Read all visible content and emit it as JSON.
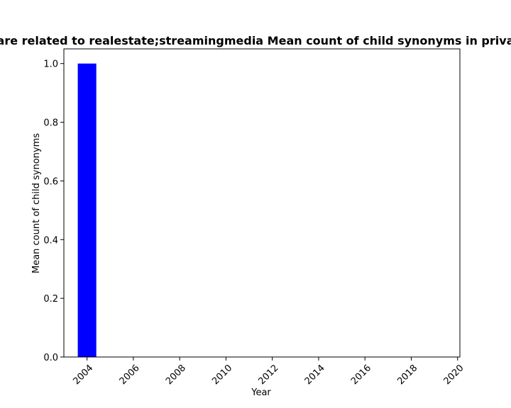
{
  "chart_data": {
    "type": "bar",
    "title": "are related to realestate;streamingmedia Mean count of child synonyms in priva",
    "xlabel": "Year",
    "ylabel": "Mean count of child synonyms",
    "x": [
      2004
    ],
    "values": [
      1.0
    ],
    "bar_color": "#0000ff",
    "xlim": [
      2003,
      2020.1
    ],
    "ylim": [
      0,
      1.05
    ],
    "xticks": [
      "2004",
      "2006",
      "2008",
      "2010",
      "2012",
      "2014",
      "2016",
      "2018",
      "2020"
    ],
    "yticks": [
      "0.0",
      "0.2",
      "0.4",
      "0.6",
      "0.8",
      "1.0"
    ],
    "grid": false,
    "legend": "none"
  }
}
